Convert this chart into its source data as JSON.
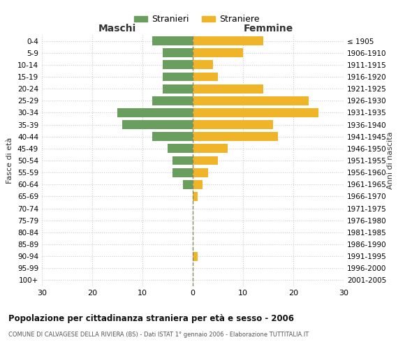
{
  "age_groups": [
    "0-4",
    "5-9",
    "10-14",
    "15-19",
    "20-24",
    "25-29",
    "30-34",
    "35-39",
    "40-44",
    "45-49",
    "50-54",
    "55-59",
    "60-64",
    "65-69",
    "70-74",
    "75-79",
    "80-84",
    "85-89",
    "90-94",
    "95-99",
    "100+"
  ],
  "birth_years": [
    "2001-2005",
    "1996-2000",
    "1991-1995",
    "1986-1990",
    "1981-1985",
    "1976-1980",
    "1971-1975",
    "1966-1970",
    "1961-1965",
    "1956-1960",
    "1951-1955",
    "1946-1950",
    "1941-1945",
    "1936-1940",
    "1931-1935",
    "1926-1930",
    "1921-1925",
    "1916-1920",
    "1911-1915",
    "1906-1910",
    "≤ 1905"
  ],
  "maschi": [
    8,
    6,
    6,
    6,
    6,
    8,
    15,
    14,
    8,
    5,
    4,
    4,
    2,
    0,
    0,
    0,
    0,
    0,
    0,
    0,
    0
  ],
  "femmine": [
    14,
    10,
    4,
    5,
    14,
    23,
    25,
    16,
    17,
    7,
    5,
    3,
    2,
    1,
    0,
    0,
    0,
    0,
    1,
    0,
    0
  ],
  "color_maschi": "#6a9e5f",
  "color_femmine": "#f0b429",
  "xlim": 30,
  "title": "Popolazione per cittadinanza straniera per età e sesso - 2006",
  "subtitle": "COMUNE DI CALVAGESE DELLA RIVIERA (BS) - Dati ISTAT 1° gennaio 2006 - Elaborazione TUTTITALIA.IT",
  "ylabel_left": "Fasce di età",
  "ylabel_right": "Anni di nascita",
  "xlabel_maschi": "Maschi",
  "xlabel_femmine": "Femmine",
  "legend_maschi": "Stranieri",
  "legend_femmine": "Straniere",
  "bg_color": "#ffffff",
  "grid_color": "#cccccc"
}
